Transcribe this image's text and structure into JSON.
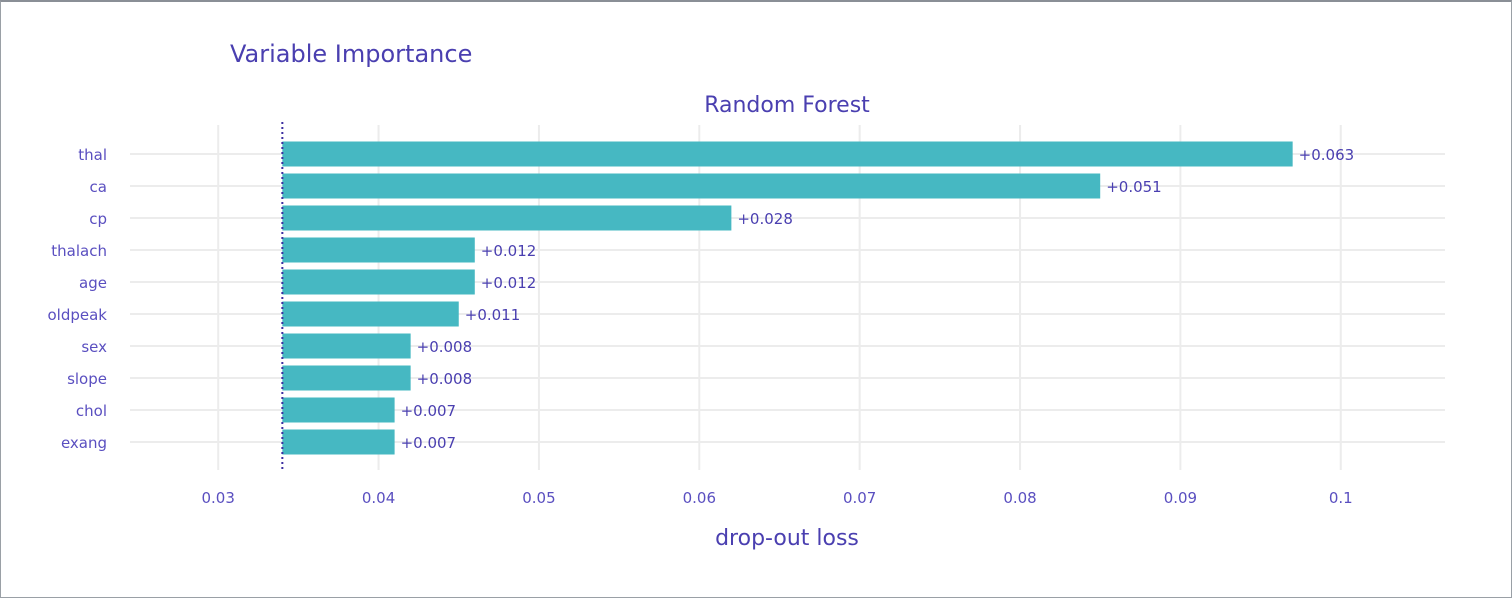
{
  "chart_data": {
    "type": "bar",
    "orientation": "horizontal",
    "title": "Variable Importance",
    "subtitle": "Random Forest",
    "xlabel": "drop-out loss",
    "baseline": 0.034,
    "xlim": [
      0.0245,
      0.1065
    ],
    "xticks": [
      0.03,
      0.04,
      0.05,
      0.06,
      0.07,
      0.08,
      0.09,
      0.1
    ],
    "xtick_labels": [
      "0.03",
      "0.04",
      "0.05",
      "0.06",
      "0.07",
      "0.08",
      "0.09",
      "0.1"
    ],
    "categories": [
      "thal",
      "ca",
      "cp",
      "thalach",
      "age",
      "oldpeak",
      "sex",
      "slope",
      "chol",
      "exang"
    ],
    "values": [
      0.097,
      0.085,
      0.062,
      0.046,
      0.046,
      0.045,
      0.042,
      0.042,
      0.041,
      0.041
    ],
    "labels": [
      "+0.063",
      "+0.051",
      "+0.028",
      "+0.012",
      "+0.012",
      "+0.011",
      "+0.008",
      "+0.008",
      "+0.007",
      "+0.007"
    ],
    "grid": true,
    "bar_color": "#46b8c2",
    "baseline_color": "#3b2fa0",
    "text_color": "#4a3fb0"
  }
}
